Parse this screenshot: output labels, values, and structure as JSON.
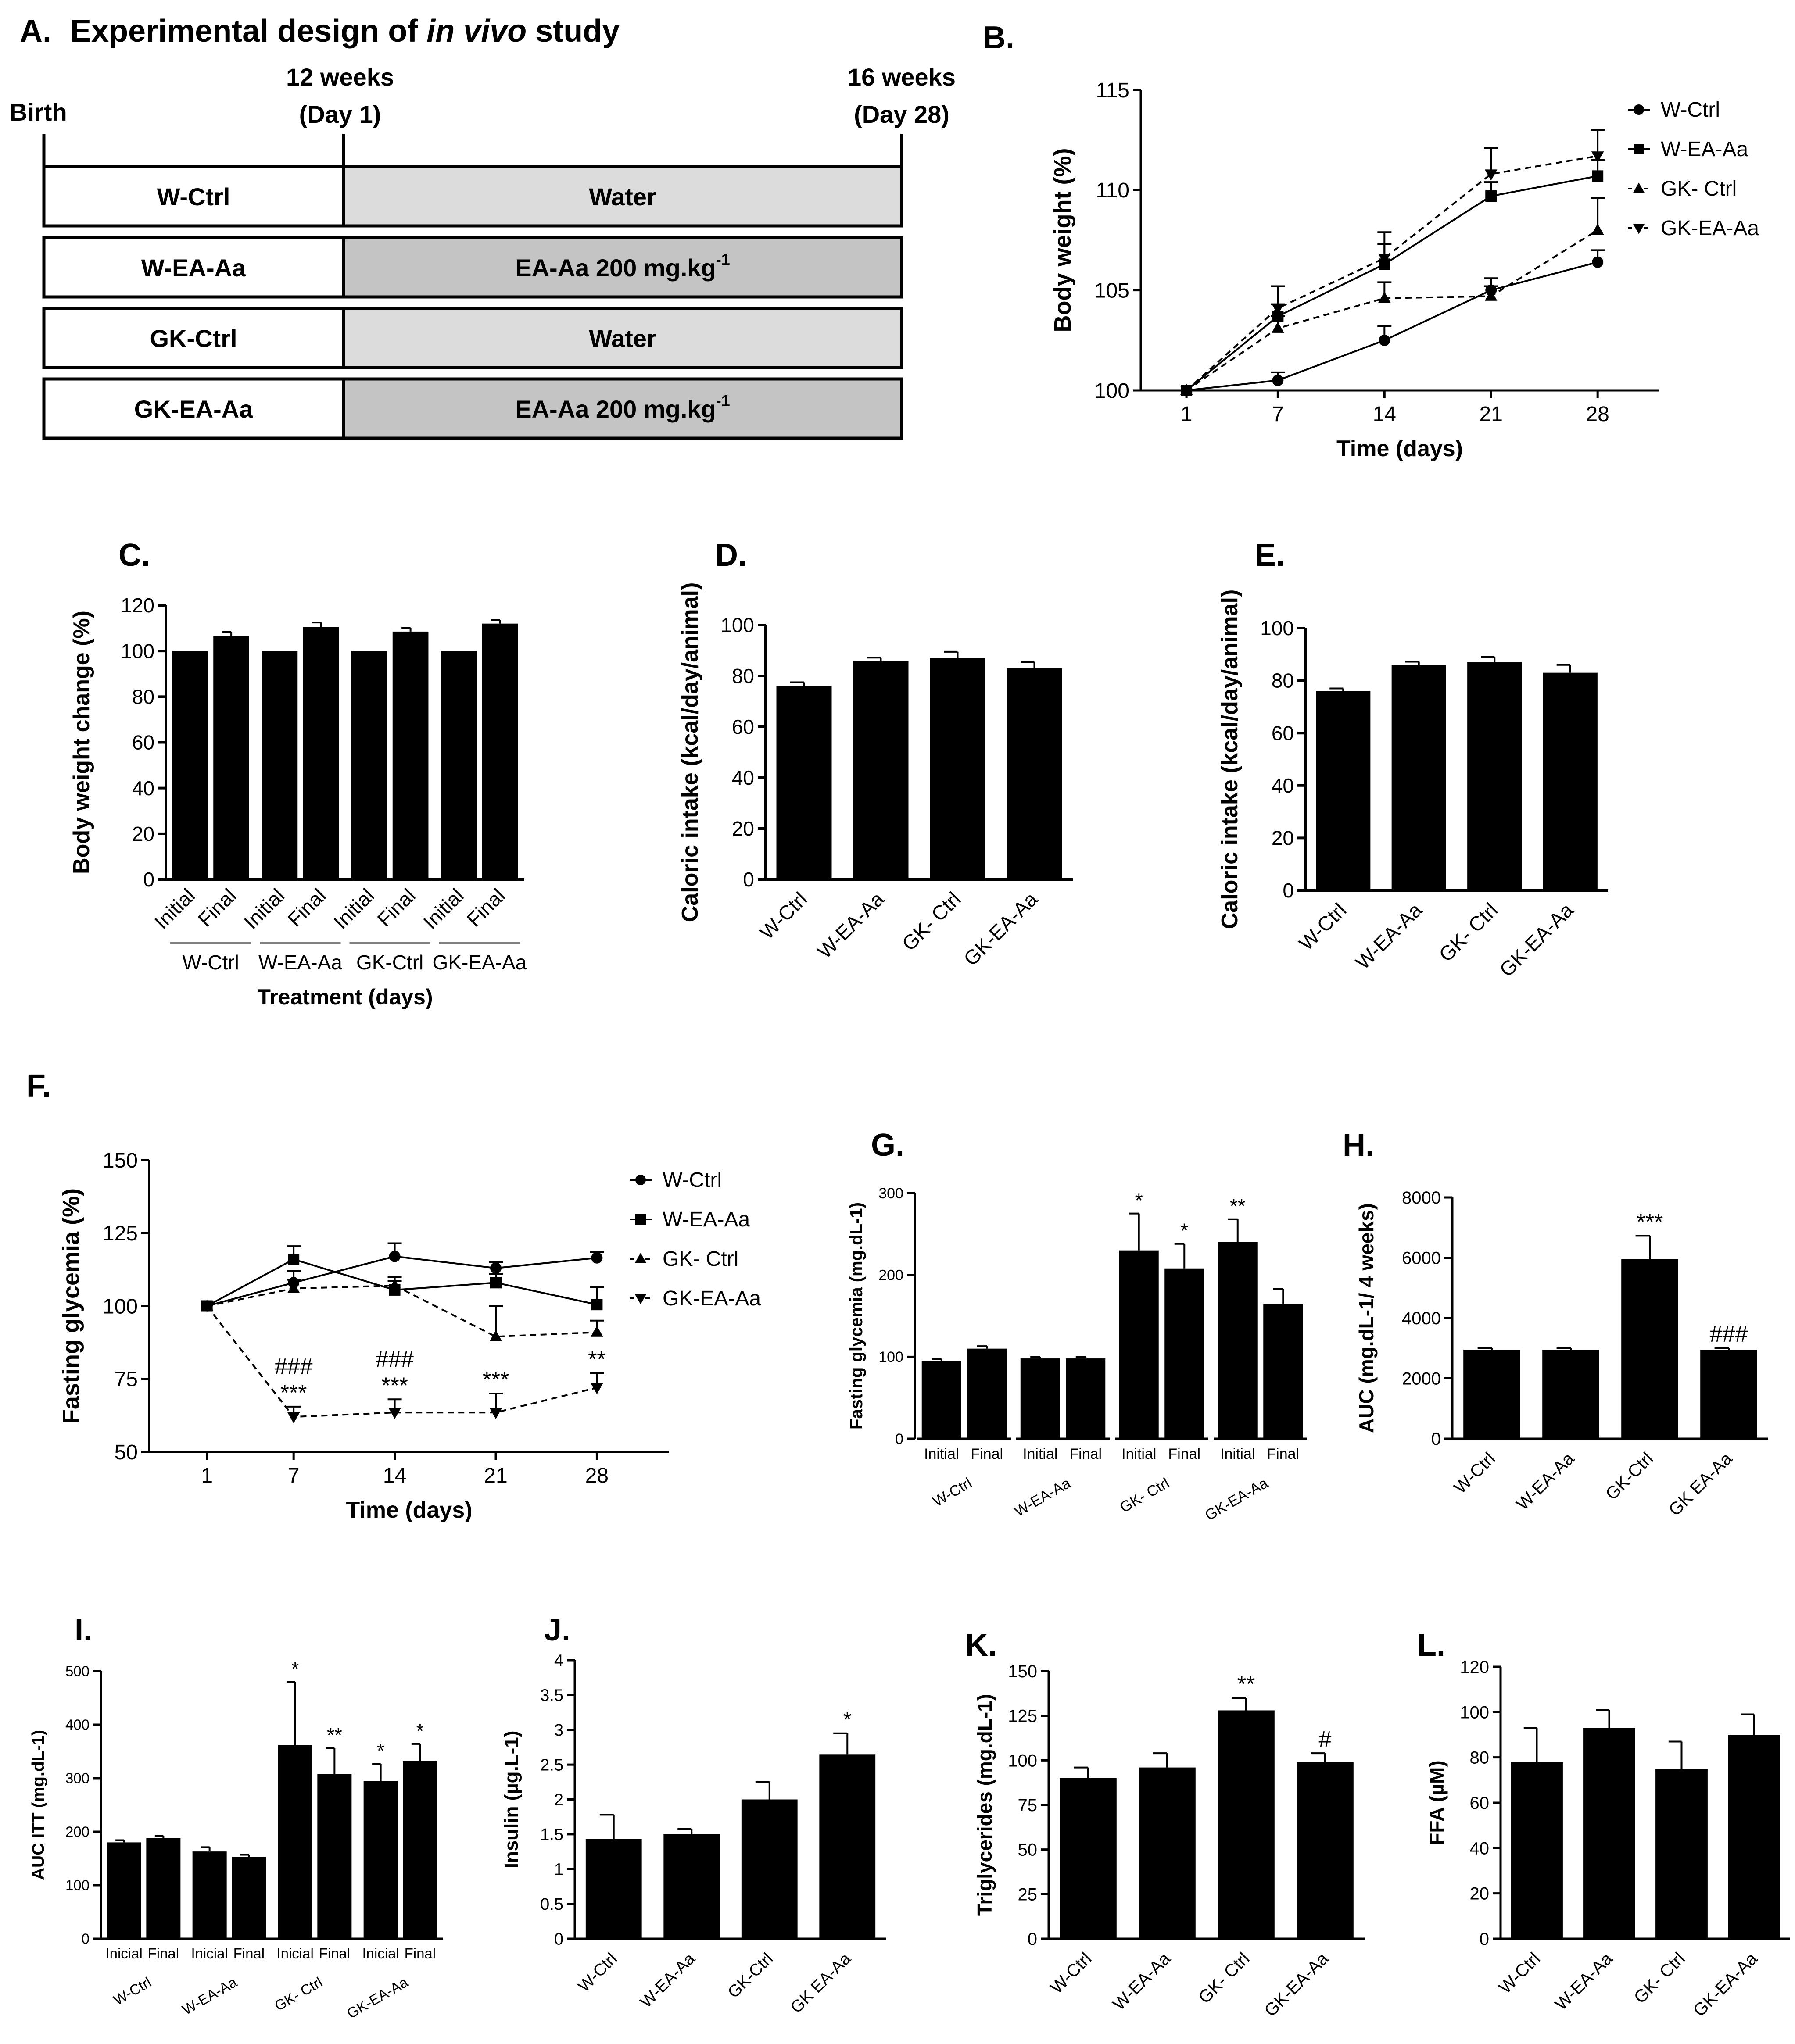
{
  "figure": {
    "panel_A": {
      "letter": "A.",
      "title_prefix": "Experimental design of ",
      "title_italic": "in vivo",
      "title_suffix": " study",
      "timeline": {
        "start": "Birth",
        "mid_1": "12 weeks",
        "mid_2": "(Day 1)",
        "end_1": "16 weeks",
        "end_2": "(Day 28)"
      },
      "rows": [
        {
          "group": "W-Ctrl",
          "treatment": "Water",
          "tone": "light"
        },
        {
          "group": "W-EA-Aa",
          "treatment": "EA-Aa 200 mg.kg",
          "superscript": "-1",
          "tone": "dark"
        },
        {
          "group": "GK-Ctrl",
          "treatment": "Water",
          "tone": "light"
        },
        {
          "group": "GK-EA-Aa",
          "treatment": "EA-Aa 200 mg.kg",
          "superscript": "-1",
          "tone": "dark"
        }
      ]
    },
    "colors": {
      "ink": "#000000",
      "light_fill": "#dcdcdc",
      "dark_fill": "#c4c4c4",
      "bar": "#000000"
    }
  },
  "chart_data": [
    {
      "panel": "B.",
      "type": "line",
      "x": [
        1,
        7,
        14,
        21,
        28
      ],
      "xlabel": "Time (days)",
      "ylabel": "Body weight (%)",
      "ylim": [
        100,
        115
      ],
      "yticks": [
        100,
        105,
        110,
        115
      ],
      "series": [
        {
          "name": "W-Ctrl",
          "marker": "circle",
          "dash": false,
          "values": [
            100,
            100.5,
            102.5,
            105.0,
            106.4
          ],
          "errors": [
            0,
            0.4,
            0.7,
            0.6,
            0.6
          ]
        },
        {
          "name": "W-EA-Aa",
          "marker": "square",
          "dash": false,
          "values": [
            100,
            103.7,
            106.3,
            109.7,
            110.7
          ],
          "errors": [
            0,
            0.6,
            1.0,
            0.7,
            0.8
          ]
        },
        {
          "name": "GK- Ctrl",
          "marker": "triangle-up",
          "dash": true,
          "values": [
            100,
            103.1,
            104.6,
            104.7,
            108.0
          ],
          "errors": [
            0,
            0.6,
            0.8,
            0.5,
            1.6
          ]
        },
        {
          "name": "GK-EA-Aa",
          "marker": "triangle-down",
          "dash": true,
          "values": [
            100,
            104.1,
            106.6,
            110.8,
            111.7
          ],
          "errors": [
            0,
            1.1,
            1.3,
            1.3,
            1.3
          ]
        }
      ],
      "legend": "right"
    },
    {
      "panel": "C.",
      "type": "bar",
      "categories": [
        "Initial",
        "Final",
        "Initial",
        "Final",
        "Initial",
        "Final",
        "Initial",
        "Final"
      ],
      "groups": [
        "W-Ctrl",
        "W-EA-Aa",
        "GK-Ctrl",
        "GK-EA-Aa"
      ],
      "values": [
        100,
        106.5,
        100,
        110.5,
        100,
        108.5,
        100,
        112
      ],
      "errors": [
        0,
        1.8,
        0,
        2.0,
        0,
        1.7,
        0,
        1.5
      ],
      "xlabel": "Treatment (days)",
      "ylabel": "Body weight change (%)",
      "ylim": [
        0,
        120
      ],
      "yticks": [
        0,
        20,
        40,
        60,
        80,
        100,
        120
      ]
    },
    {
      "panel": "D.",
      "type": "bar",
      "categories": [
        "W-Ctrl",
        "W-EA-Aa",
        "GK- Ctrl",
        "GK-EA-Aa"
      ],
      "values": [
        76,
        86,
        87,
        83
      ],
      "errors": [
        1.5,
        1.2,
        2.5,
        2.5
      ],
      "ylabel": "Caloric intake (kcal/day/animal)",
      "ylim": [
        0,
        100
      ],
      "yticks": [
        0,
        20,
        40,
        60,
        80,
        100
      ]
    },
    {
      "panel": "E.",
      "type": "bar",
      "categories": [
        "W-Ctrl",
        "W-EA-Aa",
        "GK- Ctrl",
        "GK-EA-Aa"
      ],
      "values": [
        76,
        86,
        87,
        83
      ],
      "errors": [
        1.0,
        1.2,
        2.0,
        3.0
      ],
      "ylabel": "Caloric intake (kcal/day/animal)",
      "ylim": [
        0,
        100
      ],
      "yticks": [
        0,
        20,
        40,
        60,
        80,
        100
      ]
    },
    {
      "panel": "F.",
      "type": "line",
      "x": [
        1,
        7,
        14,
        21,
        28
      ],
      "xlabel": "Time (days)",
      "ylabel": "Fasting glycemia (%)",
      "ylim": [
        50,
        150
      ],
      "yticks": [
        50,
        75,
        100,
        125,
        150
      ],
      "series": [
        {
          "name": "W-Ctrl",
          "marker": "circle",
          "dash": false,
          "values": [
            100,
            108,
            117,
            113,
            116.5
          ],
          "errors": [
            0,
            4,
            4.5,
            2,
            2
          ]
        },
        {
          "name": "W-EA-Aa",
          "marker": "square",
          "dash": false,
          "values": [
            100,
            116,
            105.5,
            108,
            100.5
          ],
          "errors": [
            0,
            4.5,
            3,
            3,
            6
          ]
        },
        {
          "name": "GK- Ctrl",
          "marker": "triangle-up",
          "dash": true,
          "values": [
            100,
            106,
            107,
            89.5,
            91
          ],
          "errors": [
            0,
            3,
            3,
            10.5,
            4
          ]
        },
        {
          "name": "GK-EA-Aa",
          "marker": "triangle-down",
          "dash": true,
          "values": [
            100,
            62,
            63.5,
            63.5,
            72
          ],
          "errors": [
            0,
            3.5,
            4.5,
            6.5,
            5
          ]
        }
      ],
      "annotations": [
        {
          "x": 7,
          "lines": [
            "###",
            "***"
          ]
        },
        {
          "x": 14,
          "lines": [
            "###",
            "***"
          ]
        },
        {
          "x": 21,
          "lines": [
            "***"
          ]
        },
        {
          "x": 28,
          "lines": [
            "**"
          ]
        }
      ],
      "legend": "right"
    },
    {
      "panel": "G.",
      "type": "bar",
      "categories": [
        "Initial",
        "Final",
        "Initial",
        "Final",
        "Initial",
        "Final",
        "Initial",
        "Final"
      ],
      "groups": [
        "W-Ctrl",
        "W-EA-Aa",
        "GK- Ctrl",
        "GK-EA-Aa"
      ],
      "values": [
        95,
        110,
        98,
        98,
        230,
        208,
        240,
        165
      ],
      "errors": [
        2,
        3,
        2,
        2,
        45,
        30,
        28,
        18
      ],
      "marks": [
        "",
        "",
        "",
        "",
        "*",
        "*",
        "**",
        ""
      ],
      "ylabel": "Fasting glycemia (mg.dL-1)",
      "ylim": [
        0,
        300
      ],
      "yticks": [
        0,
        100,
        200,
        300
      ]
    },
    {
      "panel": "H.",
      "type": "bar",
      "categories": [
        "W-Ctrl",
        "W-EA-Aa",
        "GK-Ctrl",
        "GK EA-Aa"
      ],
      "values": [
        2950,
        2950,
        5950,
        2950
      ],
      "errors": [
        60,
        60,
        780,
        60
      ],
      "marks": [
        "",
        "",
        "***",
        "###"
      ],
      "ylabel": "AUC (mg.dL-1/ 4 weeks)",
      "ylim": [
        0,
        8000
      ],
      "yticks": [
        0,
        2000,
        4000,
        6000,
        8000
      ]
    },
    {
      "panel": "I.",
      "type": "bar",
      "categories": [
        "Inicial",
        "Final",
        "Inicial",
        "Final",
        "Inicial",
        "Final",
        "Inicial",
        "Final"
      ],
      "groups": [
        "W-Ctrl",
        "W-EA-Aa",
        "GK- Ctrl",
        "GK-EA-Aa"
      ],
      "values": [
        180,
        188,
        163,
        153,
        362,
        308,
        295,
        332
      ],
      "errors": [
        4,
        4,
        8,
        4,
        118,
        48,
        32,
        32
      ],
      "marks": [
        "",
        "",
        "",
        "",
        "*",
        "**",
        "*",
        "*"
      ],
      "ylabel": "AUC ITT (mg.dL-1)",
      "ylim": [
        0,
        500
      ],
      "yticks": [
        0,
        100,
        200,
        300,
        400,
        500
      ]
    },
    {
      "panel": "J.",
      "type": "bar",
      "categories": [
        "W-Ctrl",
        "W-EA-Aa",
        "GK-Ctrl",
        "GK EA-Aa"
      ],
      "values": [
        1.43,
        1.5,
        2.0,
        2.65
      ],
      "errors": [
        0.35,
        0.08,
        0.25,
        0.3
      ],
      "marks": [
        "",
        "",
        "",
        "*"
      ],
      "ylabel": "Insulin (µg.L-1)",
      "ylim": [
        0,
        4.0
      ],
      "yticks": [
        0.0,
        0.5,
        1.0,
        1.5,
        2.0,
        2.5,
        3.0,
        3.5,
        4.0
      ]
    },
    {
      "panel": "K.",
      "type": "bar",
      "categories": [
        "W-Ctrl",
        "W-EA-Aa",
        "GK- Ctrl",
        "GK-EA-Aa"
      ],
      "values": [
        90,
        96,
        128,
        99
      ],
      "errors": [
        6,
        8,
        7,
        5
      ],
      "marks": [
        "",
        "",
        "**",
        "#"
      ],
      "ylabel": "Triglycerides (mg.dL-1)",
      "ylim": [
        0,
        150
      ],
      "yticks": [
        0,
        25,
        50,
        75,
        100,
        125,
        150
      ]
    },
    {
      "panel": "L.",
      "type": "bar",
      "categories": [
        "W-Ctrl",
        "W-EA-Aa",
        "GK- Ctrl",
        "GK-EA-Aa"
      ],
      "values": [
        78,
        93,
        75,
        90
      ],
      "errors": [
        15,
        8,
        12,
        9
      ],
      "ylabel": "FFA (µM)",
      "ylim": [
        0,
        120
      ],
      "yticks": [
        0,
        20,
        40,
        60,
        80,
        100,
        120
      ]
    }
  ]
}
